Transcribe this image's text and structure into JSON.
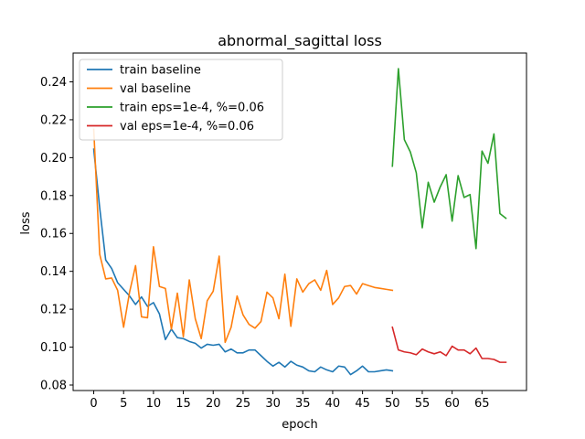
{
  "chart_data": {
    "type": "line",
    "title": "abnormal_sagittal loss",
    "xlabel": "epoch",
    "ylabel": "loss",
    "xlim": [
      -3.45,
      72.45
    ],
    "ylim": [
      0.0771,
      0.2552
    ],
    "xticks": [
      0,
      5,
      10,
      15,
      20,
      25,
      30,
      35,
      40,
      45,
      50,
      55,
      60,
      65
    ],
    "yticks": [
      0.08,
      0.1,
      0.12,
      0.14,
      0.16,
      0.18,
      0.2,
      0.22,
      0.24
    ],
    "grid": false,
    "legend_position": "top-left",
    "series": [
      {
        "name": "train baseline",
        "color": "#1f77b4",
        "x_start": 0,
        "values": [
          0.2045,
          0.1735,
          0.146,
          0.1415,
          0.134,
          0.1305,
          0.127,
          0.1225,
          0.1265,
          0.1215,
          0.1235,
          0.1175,
          0.104,
          0.1095,
          0.105,
          0.1045,
          0.103,
          0.102,
          0.0995,
          0.1015,
          0.101,
          0.1015,
          0.0975,
          0.099,
          0.097,
          0.097,
          0.0985,
          0.0985,
          0.0955,
          0.0925,
          0.09,
          0.092,
          0.0895,
          0.0925,
          0.0905,
          0.0895,
          0.0875,
          0.087,
          0.0895,
          0.088,
          0.087,
          0.09,
          0.0895,
          0.0855,
          0.0875,
          0.09,
          0.087,
          0.087,
          0.0875,
          0.088,
          0.0875
        ]
      },
      {
        "name": "val baseline",
        "color": "#ff7f0e",
        "x_start": 0,
        "values": [
          0.215,
          0.149,
          0.136,
          0.1365,
          0.13,
          0.1105,
          0.129,
          0.143,
          0.116,
          0.1155,
          0.153,
          0.132,
          0.131,
          0.1095,
          0.1285,
          0.1055,
          0.1355,
          0.115,
          0.1045,
          0.1245,
          0.1295,
          0.148,
          0.1025,
          0.1105,
          0.127,
          0.117,
          0.112,
          0.11,
          0.1135,
          0.129,
          0.126,
          0.115,
          0.1385,
          0.111,
          0.136,
          0.129,
          0.1335,
          0.1355,
          0.13,
          0.1405,
          0.1225,
          0.126,
          0.132,
          0.1325,
          0.128,
          0.1335,
          0.1325,
          0.1315,
          0.131,
          0.1305,
          0.13
        ]
      },
      {
        "name": "train eps=1e-4, %=0.06",
        "color": "#2ca02c",
        "x_start": 50,
        "values": [
          0.1955,
          0.247,
          0.2095,
          0.203,
          0.192,
          0.163,
          0.187,
          0.1765,
          0.1845,
          0.191,
          0.1665,
          0.1905,
          0.179,
          0.1805,
          0.152,
          0.2035,
          0.197,
          0.2125,
          0.1705,
          0.168
        ]
      },
      {
        "name": "val eps=1e-4, %=0.06",
        "color": "#d62728",
        "x_start": 50,
        "values": [
          0.1105,
          0.0985,
          0.0975,
          0.097,
          0.096,
          0.099,
          0.0975,
          0.0965,
          0.0975,
          0.0955,
          0.1005,
          0.0985,
          0.0985,
          0.0965,
          0.0995,
          0.094,
          0.094,
          0.0935,
          0.092,
          0.092
        ]
      }
    ]
  }
}
